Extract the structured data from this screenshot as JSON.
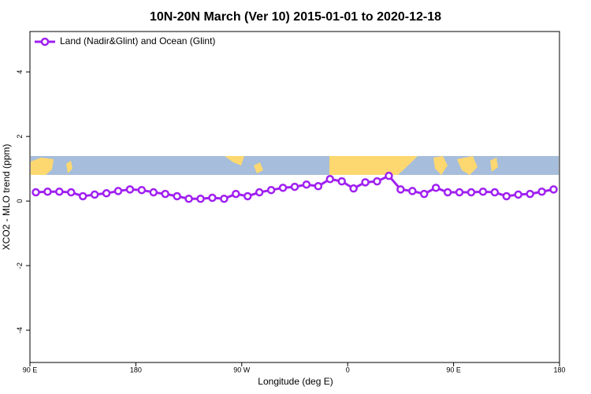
{
  "chart_data": {
    "type": "line",
    "title": "10N-20N March (Ver 10)   2015-01-01 to 2020-12-18",
    "x_label": "Longitude (deg E)",
    "y_label": "XCO2 - MLO trend (ppm)",
    "x": [
      95,
      105,
      115,
      125,
      135,
      145,
      155,
      165,
      175,
      185,
      195,
      205,
      215,
      225,
      235,
      245,
      255,
      265,
      275,
      285,
      295,
      305,
      315,
      325,
      335,
      345,
      355,
      365,
      375,
      385,
      395,
      405,
      415,
      425,
      435,
      445,
      455,
      465,
      475,
      485,
      495,
      505,
      515,
      525,
      535
    ],
    "series": [
      {
        "name": "Land (Nadir&Glint) and Ocean (Glint)",
        "color": "#a020f0",
        "values": [
          0.27,
          0.29,
          0.29,
          0.27,
          0.15,
          0.2,
          0.24,
          0.31,
          0.36,
          0.34,
          0.27,
          0.22,
          0.15,
          0.07,
          0.07,
          0.1,
          0.07,
          0.22,
          0.15,
          0.27,
          0.34,
          0.41,
          0.44,
          0.51,
          0.46,
          0.68,
          0.61,
          0.39,
          0.58,
          0.61,
          0.78,
          0.36,
          0.31,
          0.22,
          0.41,
          0.27,
          0.27,
          0.27,
          0.29,
          0.27,
          0.15,
          0.2,
          0.22,
          0.29,
          0.36
        ]
      }
    ],
    "xlim": [
      90,
      540
    ],
    "xticks": [
      {
        "value": 90,
        "label": "90 E"
      },
      180,
      {
        "value": 270,
        "label": "90 W"
      },
      {
        "value": 360,
        "label": "0"
      },
      {
        "value": 450,
        "label": "90 E"
      },
      {
        "value": 540,
        "label": "180"
      }
    ],
    "ylim": [
      -5,
      5.25
    ],
    "yticks": [
      4,
      2,
      0,
      -2,
      -4
    ],
    "legend": "top-left"
  }
}
